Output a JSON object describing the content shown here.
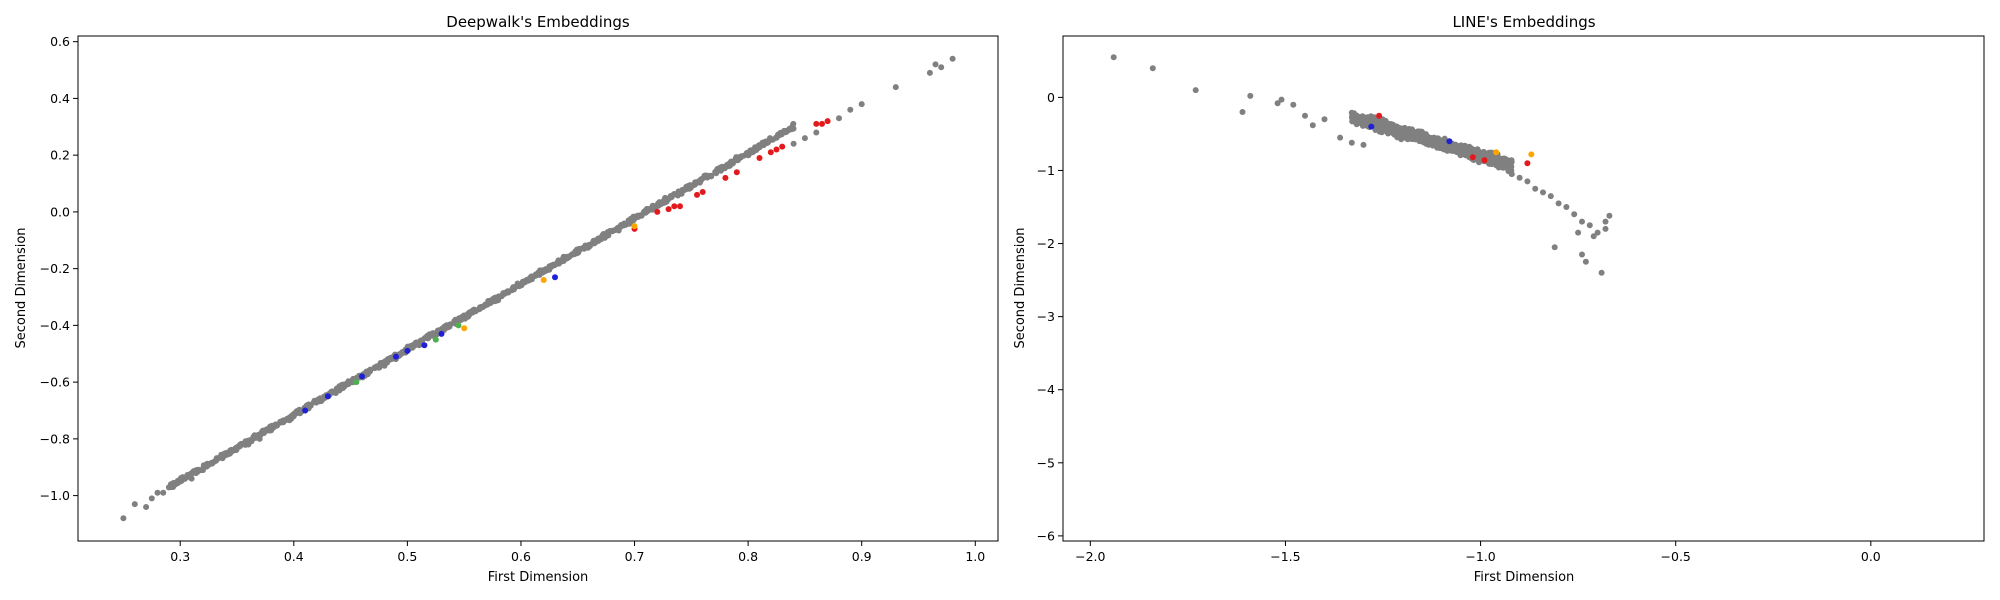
{
  "chart_data": [
    {
      "type": "scatter",
      "title": "Deepwalk's Embeddings",
      "xlabel": "First Dimension",
      "ylabel": "Second Dimension",
      "xlim": [
        0.21,
        1.02
      ],
      "ylim": [
        -1.16,
        0.62
      ],
      "xticks": [
        0.3,
        0.4,
        0.5,
        0.6,
        0.7,
        0.8,
        0.9,
        1.0
      ],
      "xtick_labels": [
        "0.3",
        "0.4",
        "0.5",
        "0.6",
        "0.7",
        "0.8",
        "0.9",
        "1.0"
      ],
      "yticks": [
        -1.0,
        -0.8,
        -0.6,
        -0.4,
        -0.2,
        0.0,
        0.2,
        0.4,
        0.6
      ],
      "ytick_labels": [
        "−1.0",
        "−0.8",
        "−0.6",
        "−0.4",
        "−0.2",
        "0.0",
        "0.2",
        "0.4",
        "0.6"
      ],
      "grid": false,
      "colors": {
        "gray": "#808080",
        "red": "#e31a1c",
        "blue": "#1f1fd6",
        "orange": "#ffa500",
        "green": "#4caf50"
      },
      "band": {
        "x_range": [
          0.29,
          0.84
        ],
        "slope": 2.31,
        "intercept": -1.64,
        "thickness": 0.012,
        "count": 900,
        "color": "gray"
      },
      "series": [
        {
          "color": "gray",
          "points": [
            [
              0.25,
              -1.08
            ],
            [
              0.26,
              -1.03
            ],
            [
              0.27,
              -1.04
            ],
            [
              0.275,
              -1.01
            ],
            [
              0.28,
              -0.99
            ],
            [
              0.285,
              -0.99
            ],
            [
              0.3,
              -0.95
            ],
            [
              0.31,
              -0.94
            ],
            [
              0.32,
              -0.91
            ],
            [
              0.33,
              -0.88
            ],
            [
              0.34,
              -0.85
            ],
            [
              0.35,
              -0.83
            ],
            [
              0.36,
              -0.82
            ],
            [
              0.37,
              -0.8
            ],
            [
              0.38,
              -0.77
            ],
            [
              0.84,
              0.24
            ],
            [
              0.85,
              0.26
            ],
            [
              0.86,
              0.28
            ],
            [
              0.88,
              0.33
            ],
            [
              0.89,
              0.36
            ],
            [
              0.9,
              0.38
            ],
            [
              0.93,
              0.44
            ],
            [
              0.96,
              0.49
            ],
            [
              0.965,
              0.52
            ],
            [
              0.97,
              0.51
            ],
            [
              0.98,
              0.54
            ]
          ]
        },
        {
          "color": "red",
          "points": [
            [
              0.7,
              -0.06
            ],
            [
              0.72,
              0.0
            ],
            [
              0.73,
              0.01
            ],
            [
              0.735,
              0.02
            ],
            [
              0.74,
              0.02
            ],
            [
              0.755,
              0.06
            ],
            [
              0.76,
              0.07
            ],
            [
              0.78,
              0.12
            ],
            [
              0.79,
              0.14
            ],
            [
              0.81,
              0.19
            ],
            [
              0.82,
              0.21
            ],
            [
              0.825,
              0.22
            ],
            [
              0.83,
              0.23
            ],
            [
              0.86,
              0.31
            ],
            [
              0.865,
              0.31
            ],
            [
              0.87,
              0.32
            ]
          ]
        },
        {
          "color": "blue",
          "points": [
            [
              0.41,
              -0.7
            ],
            [
              0.43,
              -0.65
            ],
            [
              0.46,
              -0.58
            ],
            [
              0.49,
              -0.51
            ],
            [
              0.5,
              -0.49
            ],
            [
              0.515,
              -0.47
            ],
            [
              0.53,
              -0.43
            ],
            [
              0.63,
              -0.23
            ]
          ]
        },
        {
          "color": "orange",
          "points": [
            [
              0.55,
              -0.41
            ],
            [
              0.62,
              -0.24
            ],
            [
              0.7,
              -0.05
            ]
          ]
        },
        {
          "color": "green",
          "points": [
            [
              0.455,
              -0.6
            ],
            [
              0.525,
              -0.45
            ],
            [
              0.545,
              -0.4
            ]
          ]
        }
      ]
    },
    {
      "type": "scatter",
      "title": "LINE's Embeddings",
      "xlabel": "First Dimension",
      "ylabel": "Second Dimension",
      "xlim": [
        -2.07,
        0.29
      ],
      "ylim": [
        -6.07,
        0.84
      ],
      "xticks": [
        -2.0,
        -1.5,
        -1.0,
        -0.5,
        0.0
      ],
      "xtick_labels": [
        "−2.0",
        "−1.5",
        "−1.0",
        "−0.5",
        "0.0"
      ],
      "yticks": [
        -6,
        -5,
        -4,
        -3,
        -2,
        -1,
        0
      ],
      "ytick_labels": [
        "−6",
        "−5",
        "−4",
        "−3",
        "−2",
        "−1",
        "0"
      ],
      "grid": false,
      "colors": {
        "gray": "#808080",
        "red": "#e31a1c",
        "blue": "#1f1fd6",
        "orange": "#ffa500"
      },
      "band": {
        "x_range": [
          -1.33,
          -0.92
        ],
        "slope": -1.6,
        "intercept": -2.4,
        "thickness": 0.11,
        "count": 900,
        "color": "gray"
      },
      "series": [
        {
          "color": "gray",
          "points": [
            [
              -1.94,
              0.55
            ],
            [
              -1.84,
              0.4
            ],
            [
              -1.73,
              0.1
            ],
            [
              -1.61,
              -0.2
            ],
            [
              -1.59,
              0.02
            ],
            [
              -1.52,
              -0.08
            ],
            [
              -1.51,
              -0.03
            ],
            [
              -1.48,
              -0.1
            ],
            [
              -1.45,
              -0.25
            ],
            [
              -1.43,
              -0.38
            ],
            [
              -1.4,
              -0.3
            ],
            [
              -1.36,
              -0.55
            ],
            [
              -1.33,
              -0.62
            ],
            [
              -1.3,
              -0.65
            ],
            [
              -0.92,
              -1.05
            ],
            [
              -0.9,
              -1.1
            ],
            [
              -0.88,
              -1.15
            ],
            [
              -0.86,
              -1.25
            ],
            [
              -0.84,
              -1.3
            ],
            [
              -0.82,
              -1.35
            ],
            [
              -0.8,
              -1.45
            ],
            [
              -0.78,
              -1.5
            ],
            [
              -0.76,
              -1.6
            ],
            [
              -0.74,
              -1.7
            ],
            [
              -0.72,
              -1.75
            ],
            [
              -0.7,
              -1.85
            ],
            [
              -0.68,
              -1.8
            ],
            [
              -0.67,
              -1.62
            ],
            [
              -0.68,
              -1.7
            ],
            [
              -0.71,
              -1.9
            ],
            [
              -0.75,
              -1.85
            ],
            [
              -0.74,
              -2.15
            ],
            [
              -0.73,
              -2.25
            ],
            [
              -0.69,
              -2.4
            ],
            [
              -0.81,
              -2.05
            ]
          ]
        },
        {
          "color": "red",
          "points": [
            [
              -1.26,
              -0.25
            ],
            [
              -1.02,
              -0.82
            ],
            [
              -0.99,
              -0.86
            ],
            [
              -0.88,
              -0.9
            ]
          ]
        },
        {
          "color": "blue",
          "points": [
            [
              -1.28,
              -0.4
            ],
            [
              -1.08,
              -0.6
            ]
          ]
        },
        {
          "color": "orange",
          "points": [
            [
              -0.96,
              -0.75
            ],
            [
              -0.87,
              -0.78
            ]
          ]
        }
      ]
    }
  ]
}
